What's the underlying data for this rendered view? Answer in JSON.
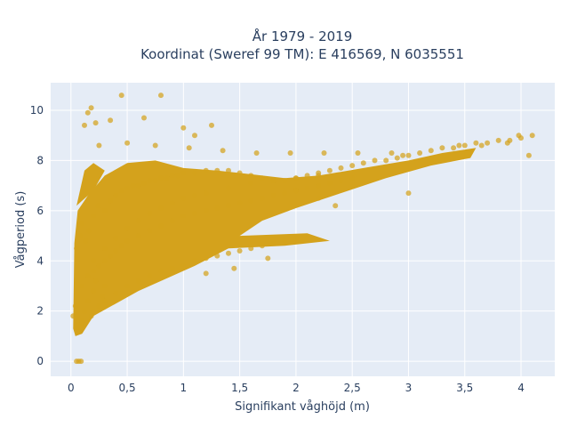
{
  "chart_data": {
    "type": "scatter",
    "title": [
      "År 1979 - 2019",
      "Koordinat (Sweref 99 TM): E 416569, N 6035551"
    ],
    "xlabel": "Signifikant våghöjd (m)",
    "ylabel": "Vågperiod (s)",
    "xlim": [
      -0.18,
      4.3
    ],
    "ylim": [
      -0.6,
      11.1
    ],
    "xticks": [
      0,
      0.5,
      1,
      1.5,
      2,
      2.5,
      3,
      3.5,
      4
    ],
    "xtick_labels": [
      "0",
      "0,5",
      "1",
      "1,5",
      "2",
      "2,5",
      "3",
      "3,5",
      "4"
    ],
    "yticks": [
      0,
      2,
      4,
      6,
      8,
      10
    ],
    "ytick_labels": [
      "0",
      "2",
      "4",
      "6",
      "8",
      "10"
    ],
    "grid": true,
    "legend": "none",
    "series": [
      {
        "color": "#d4a21c",
        "x": [
          0.05,
          0.07,
          0.09,
          0.02,
          0.04,
          0.08,
          0.1,
          0.12,
          0.15,
          0.18,
          0.2,
          0.22,
          0.25,
          0.28,
          0.3,
          0.05,
          0.08,
          0.1,
          0.13,
          0.16,
          0.2,
          0.24,
          0.3,
          0.35,
          0.4,
          0.45,
          0.5,
          0.55,
          0.6,
          0.65,
          0.7,
          0.75,
          0.8,
          0.85,
          0.9,
          0.95,
          1.0,
          1.1,
          1.2,
          1.3,
          1.4,
          1.5,
          1.6,
          1.7,
          1.8,
          1.9,
          2.0,
          2.1,
          2.2,
          2.3,
          2.4,
          2.5,
          2.6,
          2.7,
          2.8,
          2.9,
          3.0,
          3.1,
          3.2,
          3.3,
          3.4,
          3.5,
          3.6,
          3.7,
          3.8,
          3.9,
          4.0,
          4.07,
          4.1,
          3.98,
          3.88,
          3.65,
          3.45,
          3.2,
          3.0,
          2.95,
          0.1,
          0.15,
          0.2,
          0.25,
          0.3,
          0.35,
          0.4,
          0.45,
          0.5,
          0.6,
          0.7,
          0.8,
          0.9,
          1.0,
          1.1,
          1.2,
          1.3,
          1.4,
          1.5,
          1.6,
          1.7,
          1.8,
          1.9,
          2.0,
          2.1,
          2.2,
          2.3,
          2.4,
          2.5,
          0.1,
          0.2,
          0.3,
          0.4,
          0.5,
          0.6,
          0.7,
          0.8,
          0.9,
          1.0,
          1.1,
          1.2,
          1.3,
          1.4,
          1.5,
          1.6,
          1.7,
          1.8,
          1.9,
          2.0,
          0.2,
          0.3,
          0.4,
          0.5,
          0.6,
          0.7,
          0.8,
          0.9,
          1.0,
          1.1,
          1.2,
          1.4,
          1.6,
          1.8,
          2.0,
          2.2,
          0.45,
          0.8,
          0.18,
          0.15,
          0.22,
          0.12,
          0.35,
          0.65,
          1.0,
          1.1,
          1.25,
          0.25,
          0.5,
          0.75,
          1.05,
          1.35,
          1.65,
          1.95,
          2.25,
          2.55,
          2.85,
          2.0,
          2.2,
          2.35,
          1.45,
          1.75,
          1.2
        ],
        "y": [
          0,
          0,
          0,
          1.8,
          2.2,
          1.2,
          1.6,
          2.0,
          2.4,
          1.8,
          2.8,
          3.2,
          2.2,
          2.6,
          3.0,
          4.5,
          5.0,
          5.5,
          4.8,
          5.2,
          5.8,
          6.2,
          6.0,
          6.4,
          6.6,
          6.8,
          6.9,
          7.0,
          7.0,
          7.1,
          7.2,
          7.2,
          7.3,
          7.3,
          7.4,
          7.4,
          7.5,
          7.5,
          7.6,
          7.6,
          7.6,
          7.5,
          7.4,
          7.3,
          7.2,
          7.2,
          7.3,
          7.4,
          7.5,
          7.6,
          7.7,
          7.8,
          7.9,
          8.0,
          8.0,
          8.1,
          8.2,
          8.3,
          8.4,
          8.5,
          8.5,
          8.6,
          8.7,
          8.7,
          8.8,
          8.8,
          8.9,
          8.2,
          9.0,
          9.0,
          8.7,
          8.6,
          8.6,
          8.0,
          6.7,
          8.2,
          3.0,
          3.4,
          3.6,
          3.8,
          4.0,
          4.2,
          4.4,
          4.6,
          4.8,
          5.0,
          5.2,
          5.4,
          5.6,
          5.8,
          5.9,
          6.0,
          6.1,
          6.2,
          6.3,
          6.4,
          6.5,
          6.6,
          6.7,
          6.8,
          6.9,
          7.0,
          7.1,
          7.2,
          7.3,
          1.5,
          2.0,
          2.4,
          2.7,
          3.0,
          3.2,
          3.4,
          3.6,
          3.7,
          3.8,
          4.0,
          4.1,
          4.2,
          4.3,
          4.4,
          4.5,
          4.6,
          4.7,
          4.8,
          4.9,
          4.0,
          4.5,
          4.9,
          5.3,
          5.6,
          5.9,
          6.1,
          6.3,
          6.5,
          6.6,
          6.7,
          6.9,
          7.1,
          7.2,
          7.3,
          7.4,
          10.6,
          10.6,
          10.1,
          9.9,
          9.5,
          9.4,
          9.6,
          9.7,
          9.3,
          9.0,
          9.4,
          8.6,
          8.7,
          8.6,
          8.5,
          8.4,
          8.3,
          8.3,
          8.3,
          8.3,
          8.3,
          6.8,
          6.5,
          6.2,
          3.7,
          4.1,
          3.5
        ]
      }
    ]
  }
}
